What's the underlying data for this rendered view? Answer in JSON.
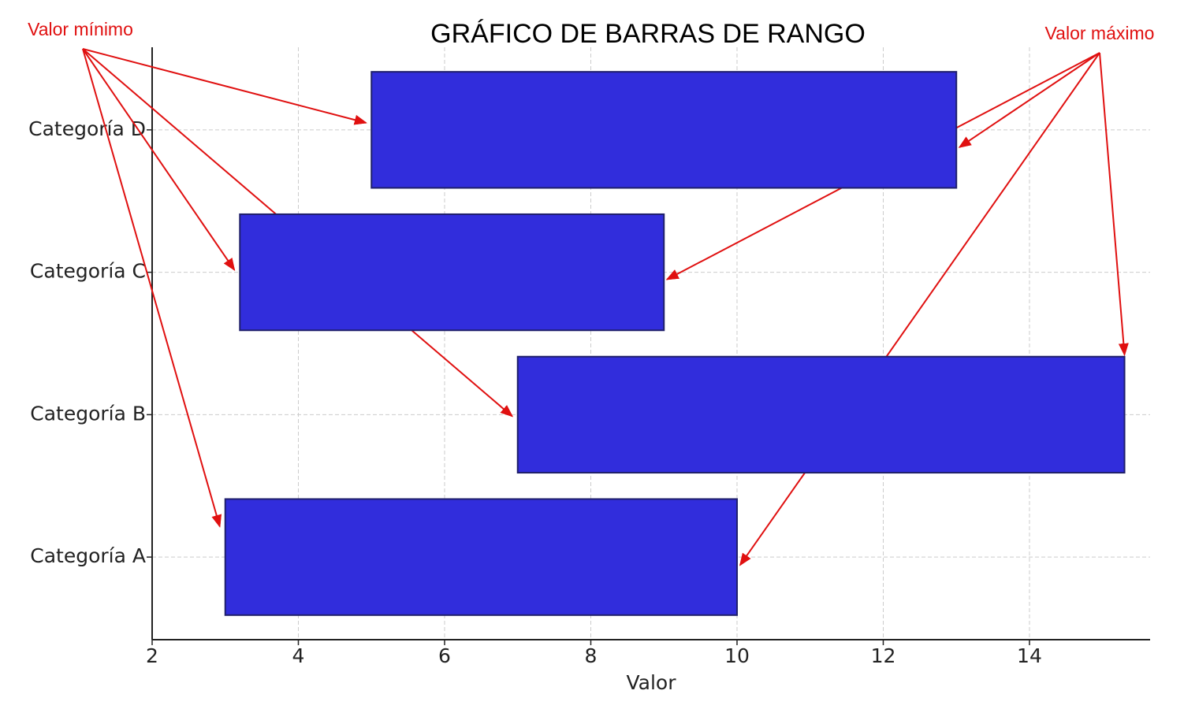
{
  "chart_data": {
    "type": "range_bar",
    "title": "GRÁFICO DE BARRAS DE RANGO",
    "x_label": "Valor",
    "categories": [
      "Categoría A",
      "Categoría B",
      "Categoría C",
      "Categoría D"
    ],
    "start": [
      3,
      7,
      3.2,
      5
    ],
    "end": [
      10,
      15.3,
      9,
      13
    ],
    "color": "#312ddc",
    "edge_color": "#1f1f6b",
    "xlim": [
      2,
      15.65
    ],
    "xticks": [
      2,
      4,
      6,
      8,
      10,
      12,
      14
    ],
    "grid": true,
    "annotations": {
      "min_label": "Valor mínimo",
      "max_label": "Valor máximo",
      "color": "#e01010"
    }
  }
}
